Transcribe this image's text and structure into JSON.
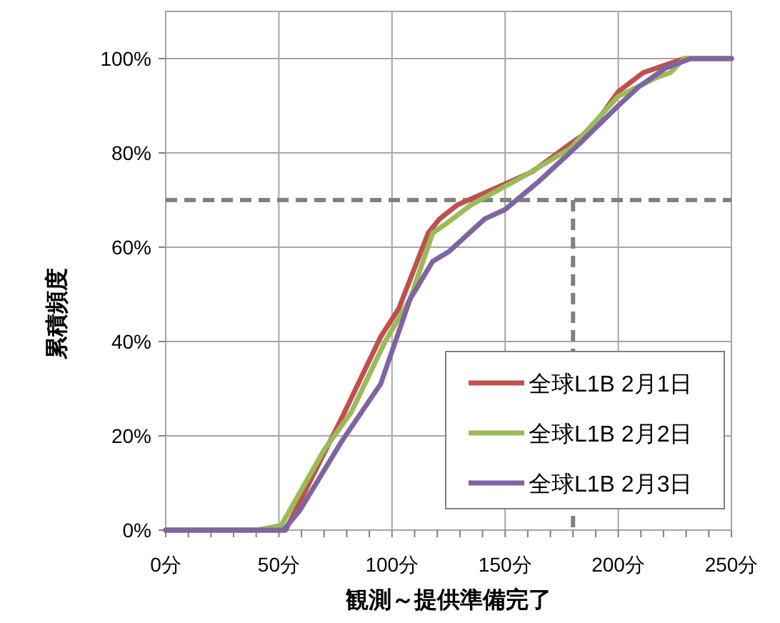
{
  "chart_data": {
    "type": "line",
    "xlabel": "観測～提供準備完了",
    "ylabel": "累積頻度",
    "xlim": [
      0,
      250
    ],
    "ylim": [
      0,
      110
    ],
    "xticks": [
      {
        "value": 0,
        "label": "0分"
      },
      {
        "value": 10,
        "label": null
      },
      {
        "value": 20,
        "label": null
      },
      {
        "value": 30,
        "label": null
      },
      {
        "value": 40,
        "label": null
      },
      {
        "value": 50,
        "label": "50分"
      },
      {
        "value": 60,
        "label": null
      },
      {
        "value": 70,
        "label": null
      },
      {
        "value": 80,
        "label": null
      },
      {
        "value": 90,
        "label": null
      },
      {
        "value": 100,
        "label": "100分"
      },
      {
        "value": 110,
        "label": null
      },
      {
        "value": 120,
        "label": null
      },
      {
        "value": 130,
        "label": null
      },
      {
        "value": 140,
        "label": null
      },
      {
        "value": 150,
        "label": "150分"
      },
      {
        "value": 160,
        "label": null
      },
      {
        "value": 170,
        "label": null
      },
      {
        "value": 180,
        "label": null
      },
      {
        "value": 190,
        "label": null
      },
      {
        "value": 200,
        "label": "200分"
      },
      {
        "value": 210,
        "label": null
      },
      {
        "value": 220,
        "label": null
      },
      {
        "value": 230,
        "label": null
      },
      {
        "value": 240,
        "label": null
      },
      {
        "value": 250,
        "label": "250分"
      }
    ],
    "yticks": [
      {
        "value": 0,
        "label": "0%"
      },
      {
        "value": 20,
        "label": "20%"
      },
      {
        "value": 40,
        "label": "40%"
      },
      {
        "value": 60,
        "label": "60%"
      },
      {
        "value": 80,
        "label": "80%"
      },
      {
        "value": 100,
        "label": "100%"
      }
    ],
    "grid": true,
    "legend": "bottom right",
    "marker": "none",
    "line_style": "solid",
    "ref_lines": [
      {
        "axis": "y",
        "value": 70,
        "color": "#808080",
        "line_style": "dashed"
      },
      {
        "axis": "x",
        "value": 180,
        "color": "#808080",
        "line_style": "dashed"
      }
    ],
    "series": [
      {
        "name": "全球L1B 2月1日",
        "color": "#c0504d",
        "x": [
          0,
          50,
          53,
          78,
          95,
          103,
          116,
          121,
          129,
          148,
          162,
          179,
          188,
          200,
          211,
          223,
          229,
          250
        ],
        "values": [
          0,
          0,
          0,
          24,
          41,
          47,
          63,
          66,
          69,
          73,
          76,
          82,
          85,
          93,
          97,
          99,
          100,
          100
        ]
      },
      {
        "name": "全球L1B 2月2日",
        "color": "#9bbb59",
        "x": [
          0,
          40,
          51,
          70,
          82,
          97,
          108,
          118,
          124,
          135,
          158,
          179,
          200,
          217,
          223,
          229,
          250
        ],
        "values": [
          0,
          0,
          1,
          17,
          25,
          40,
          49,
          63,
          65,
          69,
          75,
          81,
          92,
          96,
          97,
          100,
          100
        ]
      },
      {
        "name": "全球L1B 2月3日",
        "color": "#8064a2",
        "x": [
          0,
          52,
          59,
          78,
          95,
          108,
          118,
          125,
          141,
          150,
          165,
          183,
          200,
          209,
          221,
          232,
          250
        ],
        "values": [
          0,
          0,
          4,
          19,
          31,
          49,
          57,
          59,
          66,
          68,
          74,
          82,
          90,
          94,
          98,
          100,
          100
        ]
      }
    ]
  }
}
